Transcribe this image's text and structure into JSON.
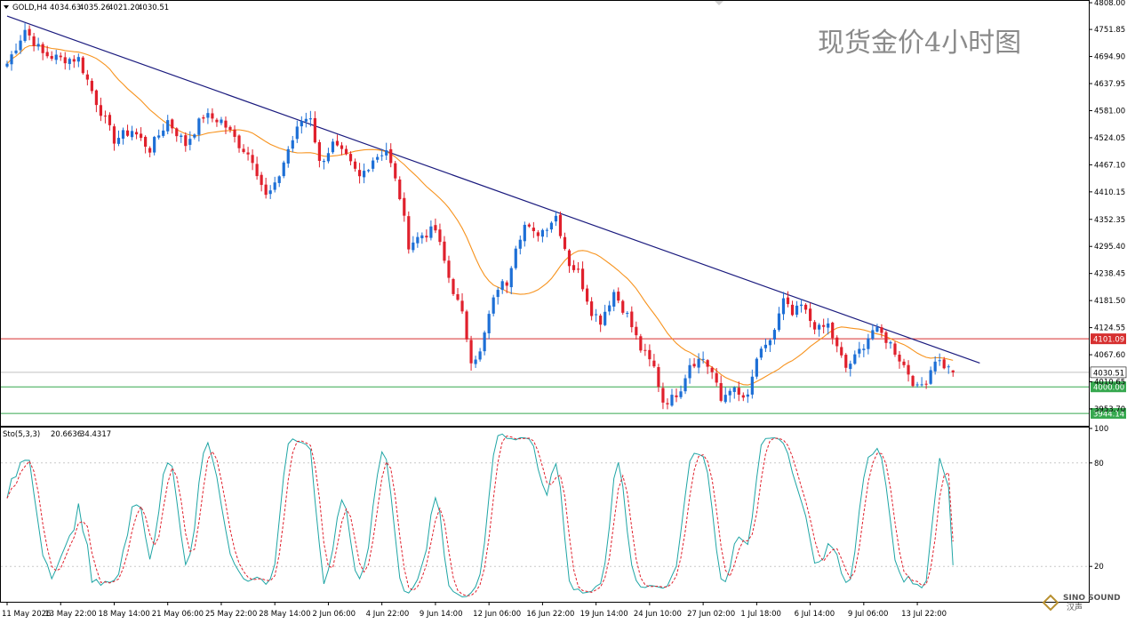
{
  "header": {
    "symbol_label": "GOLD,H4",
    "ohlc": [
      "4034.63",
      "4035.26",
      "4021.20",
      "4030.51"
    ]
  },
  "overlay_title": "现货金价4小时图",
  "indicator_label": "Sto(5,3,3)",
  "indicator_values": [
    "20.6636",
    "34.4317"
  ],
  "chart_data": [
    {
      "type": "candlestick",
      "symbol": "GOLD",
      "timeframe": "H4",
      "ylim": [
        3920,
        4810
      ],
      "y_ticks": [
        4808.0,
        4751.85,
        4694.9,
        4637.95,
        4581.0,
        4524.05,
        4467.1,
        4410.15,
        4352.35,
        4295.4,
        4238.45,
        4181.5,
        4124.55,
        4067.6,
        4010.65,
        3953.7
      ],
      "x_tick_labels": [
        "11 May 2026",
        "13 May 22:00",
        "18 May 14:00",
        "21 May 06:00",
        "25 May 22:00",
        "28 May 14:00",
        "2 Jun 06:00",
        "4 Jun 22:00",
        "9 Jun 14:00",
        "12 Jun 06:00",
        "16 Jun 22:00",
        "19 Jun 14:00",
        "24 Jun 10:00",
        "27 Jun 02:00",
        "1 Jul 18:00",
        "6 Jul 14:00",
        "9 Jul 06:00",
        "13 Jul 22:00"
      ],
      "x_anchors": [
        {
          "bar": 0,
          "close": 4680
        },
        {
          "bar": 4,
          "close": 4752
        },
        {
          "bar": 8,
          "close": 4700
        },
        {
          "bar": 12,
          "close": 4690
        },
        {
          "bar": 16,
          "close": 4690
        },
        {
          "bar": 20,
          "close": 4600
        },
        {
          "bar": 24,
          "close": 4520
        },
        {
          "bar": 28,
          "close": 4540
        },
        {
          "bar": 32,
          "close": 4500
        },
        {
          "bar": 36,
          "close": 4560
        },
        {
          "bar": 40,
          "close": 4510
        },
        {
          "bar": 44,
          "close": 4570
        },
        {
          "bar": 48,
          "close": 4560
        },
        {
          "bar": 52,
          "close": 4510
        },
        {
          "bar": 55,
          "close": 4480
        },
        {
          "bar": 58,
          "close": 4400
        },
        {
          "bar": 60,
          "close": 4420
        },
        {
          "bar": 63,
          "close": 4500
        },
        {
          "bar": 66,
          "close": 4560
        },
        {
          "bar": 68,
          "close": 4570
        },
        {
          "bar": 70,
          "close": 4470
        },
        {
          "bar": 73,
          "close": 4510
        },
        {
          "bar": 76,
          "close": 4480
        },
        {
          "bar": 79,
          "close": 4440
        },
        {
          "bar": 82,
          "close": 4480
        },
        {
          "bar": 85,
          "close": 4500
        },
        {
          "bar": 88,
          "close": 4400
        },
        {
          "bar": 90,
          "close": 4300
        },
        {
          "bar": 93,
          "close": 4320
        },
        {
          "bar": 96,
          "close": 4330
        },
        {
          "bar": 99,
          "close": 4230
        },
        {
          "bar": 102,
          "close": 4150
        },
        {
          "bar": 104,
          "close": 4060
        },
        {
          "bar": 106,
          "close": 4070
        },
        {
          "bar": 108,
          "close": 4150
        },
        {
          "bar": 110,
          "close": 4210
        },
        {
          "bar": 112,
          "close": 4220
        },
        {
          "bar": 114,
          "close": 4300
        },
        {
          "bar": 116,
          "close": 4340
        },
        {
          "bar": 118,
          "close": 4320
        },
        {
          "bar": 120,
          "close": 4330
        },
        {
          "bar": 123,
          "close": 4360
        },
        {
          "bar": 126,
          "close": 4260
        },
        {
          "bar": 128,
          "close": 4240
        },
        {
          "bar": 131,
          "close": 4160
        },
        {
          "bar": 133,
          "close": 4140
        },
        {
          "bar": 136,
          "close": 4200
        },
        {
          "bar": 139,
          "close": 4150
        },
        {
          "bar": 142,
          "close": 4080
        },
        {
          "bar": 145,
          "close": 4040
        },
        {
          "bar": 147,
          "close": 3970
        },
        {
          "bar": 149,
          "close": 3975
        },
        {
          "bar": 151,
          "close": 4000
        },
        {
          "bar": 153,
          "close": 4050
        },
        {
          "bar": 156,
          "close": 4060
        },
        {
          "bar": 158,
          "close": 4030
        },
        {
          "bar": 160,
          "close": 3970
        },
        {
          "bar": 162,
          "close": 4000
        },
        {
          "bar": 164,
          "close": 3980
        },
        {
          "bar": 166,
          "close": 3975
        },
        {
          "bar": 168,
          "close": 4060
        },
        {
          "bar": 170,
          "close": 4080
        },
        {
          "bar": 172,
          "close": 4120
        },
        {
          "bar": 174,
          "close": 4180
        },
        {
          "bar": 176,
          "close": 4150
        },
        {
          "bar": 178,
          "close": 4170
        },
        {
          "bar": 180,
          "close": 4140
        },
        {
          "bar": 182,
          "close": 4120
        },
        {
          "bar": 184,
          "close": 4130
        },
        {
          "bar": 186,
          "close": 4080
        },
        {
          "bar": 188,
          "close": 4040
        },
        {
          "bar": 190,
          "close": 4060
        },
        {
          "bar": 192,
          "close": 4090
        },
        {
          "bar": 194,
          "close": 4120
        },
        {
          "bar": 196,
          "close": 4110
        },
        {
          "bar": 198,
          "close": 4090
        },
        {
          "bar": 200,
          "close": 4060
        },
        {
          "bar": 202,
          "close": 4030
        },
        {
          "bar": 204,
          "close": 3995
        },
        {
          "bar": 206,
          "close": 4015
        },
        {
          "bar": 208,
          "close": 4060
        },
        {
          "bar": 210,
          "close": 4045
        },
        {
          "bar": 212,
          "close": 4030.51
        }
      ],
      "moving_average": {
        "type": "SMA",
        "period": 20,
        "color": "#f7931e"
      },
      "trendline": {
        "from": {
          "bar": 0,
          "price": 4780
        },
        "to": {
          "bar": 218,
          "price": 4050
        },
        "color": "#1a1a7e"
      },
      "horizontal_levels": [
        {
          "price": 4101.09,
          "label": "4101.09",
          "color": "#d62f2f"
        },
        {
          "price": 4000.0,
          "label": "4000.00",
          "color": "#36a84f"
        },
        {
          "price": 3944.14,
          "label": "3944.14",
          "color": "#36a84f"
        }
      ],
      "current_price": {
        "price": 4030.51,
        "label": "4030.51"
      },
      "up_color": "#1d6fd6",
      "down_color": "#e0202c"
    },
    {
      "type": "line",
      "indicator": "Stochastic",
      "params": [
        5,
        3,
        3
      ],
      "ylim": [
        0,
        100
      ],
      "y_ticks": [
        100,
        80,
        20
      ],
      "series": [
        {
          "name": "%K",
          "color": "#1fa5a5",
          "last": 20.6636
        },
        {
          "name": "%D",
          "color": "#e0202c",
          "last": 34.4317
        }
      ]
    }
  ],
  "colors": {
    "background": "#ffffff",
    "grid": "#c8c8c8",
    "axis_text": "#000000",
    "level_red": "#d62f2f",
    "level_green": "#36a84f",
    "current_label_bg": "#ffffff"
  },
  "watermark": {
    "text_top": "SINO SOUND",
    "text_bottom": "汉声"
  }
}
